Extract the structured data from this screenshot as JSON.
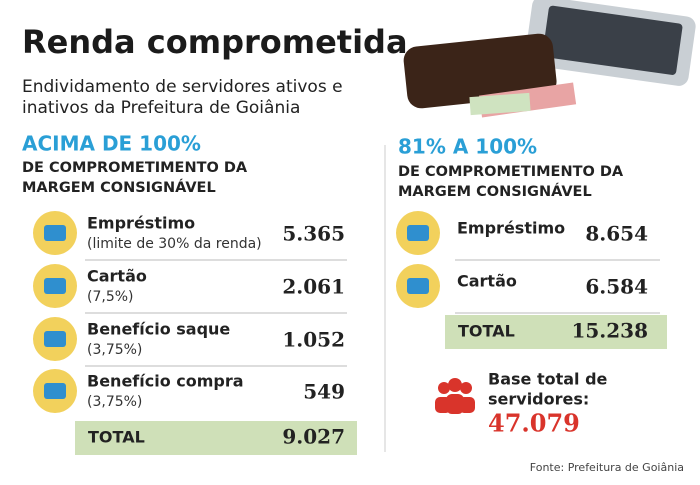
{
  "header": {
    "title": "Renda comprometida",
    "subtitle": [
      "Endividamento de servidores ativos e",
      "inativos da Prefeitura de Goiânia"
    ]
  },
  "left": {
    "heading": "ACIMA DE 100%",
    "subheading": [
      "DE COMPROMETIMENTO DA",
      "MARGEM CONSIGNÁVEL"
    ],
    "rows": [
      {
        "label": "Empréstimo",
        "note": "(limite de 30% da renda)",
        "value": "5.365"
      },
      {
        "label": "Cartão",
        "note": "(7,5%)",
        "value": "2.061"
      },
      {
        "label": "Benefício saque",
        "note": "(3,75%)",
        "value": "1.052"
      },
      {
        "label": "Benefício compra",
        "note": "(3,75%)",
        "value": "549"
      }
    ],
    "total": {
      "label": "TOTAL",
      "value": "9.027"
    }
  },
  "right": {
    "heading": "81% A 100%",
    "subheading": [
      "DE COMPROMETIMENTO DA",
      "MARGEM CONSIGNÁVEL"
    ],
    "rows": [
      {
        "label": "Empréstimo",
        "value": "8.654"
      },
      {
        "label": "Cartão",
        "value": "6.584"
      }
    ],
    "total": {
      "label": "TOTAL",
      "value": "15.238"
    }
  },
  "base": {
    "label": [
      "Base total de",
      "servidores:"
    ],
    "value": "47.079"
  },
  "source": "Fonte: Prefeitura de Goiânia"
}
